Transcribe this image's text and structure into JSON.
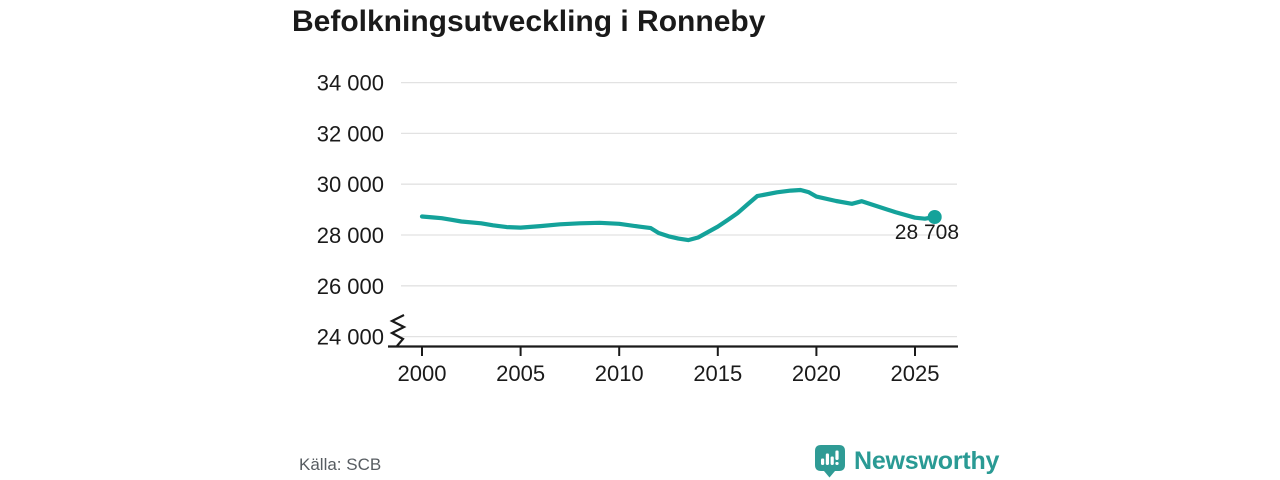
{
  "title": "Befolkningsutveckling i Ronneby",
  "source": "Källa: SCB",
  "logo": {
    "text": "Newsworthy",
    "icon": "newsworthy-speech-bubble-bar-chart-icon"
  },
  "colors": {
    "line": "#14a29a",
    "logo_teal": "#2f9b95",
    "logo_text": "#2a9a94",
    "grid": "#e2e2e2",
    "axis": "#1a1a1a",
    "text": "#1a1a1a",
    "source_text": "#575c61",
    "background": "#ffffff"
  },
  "chart_data": {
    "type": "line",
    "title": "Befolkningsutveckling i Ronneby",
    "xlabel": "",
    "ylabel": "",
    "x_unit": "year",
    "xlim": [
      1999.0,
      2027.2
    ],
    "ylim_drawn": [
      24000,
      34000
    ],
    "y_axis_break": true,
    "grid": "horizontal-only",
    "legend": "none",
    "x_ticks": [
      2000,
      2005,
      2010,
      2015,
      2020,
      2025
    ],
    "x_tick_labels": [
      "2000",
      "2005",
      "2010",
      "2015",
      "2020",
      "2025"
    ],
    "y_ticks": [
      24000,
      26000,
      28000,
      30000,
      32000,
      34000
    ],
    "y_tick_labels": [
      "24 000",
      "26 000",
      "28 000",
      "30 000",
      "32 000",
      "34 000"
    ],
    "end_value": 28708,
    "end_label": "28 708",
    "end_point": {
      "x": 2026.0,
      "value": 28708
    },
    "points": [
      [
        2000.0,
        28730
      ],
      [
        2000.6,
        28690
      ],
      [
        2001.0,
        28660
      ],
      [
        2001.5,
        28600
      ],
      [
        2002.0,
        28530
      ],
      [
        2003.0,
        28460
      ],
      [
        2003.6,
        28380
      ],
      [
        2004.3,
        28310
      ],
      [
        2005.0,
        28290
      ],
      [
        2006.0,
        28350
      ],
      [
        2007.0,
        28420
      ],
      [
        2008.0,
        28460
      ],
      [
        2009.0,
        28480
      ],
      [
        2010.0,
        28440
      ],
      [
        2011.0,
        28330
      ],
      [
        2011.6,
        28270
      ],
      [
        2012.0,
        28080
      ],
      [
        2012.5,
        27950
      ],
      [
        2013.0,
        27860
      ],
      [
        2013.5,
        27800
      ],
      [
        2014.0,
        27900
      ],
      [
        2015.0,
        28330
      ],
      [
        2015.5,
        28590
      ],
      [
        2016.0,
        28860
      ],
      [
        2016.5,
        29200
      ],
      [
        2017.0,
        29530
      ],
      [
        2018.0,
        29680
      ],
      [
        2018.7,
        29750
      ],
      [
        2019.2,
        29770
      ],
      [
        2019.6,
        29690
      ],
      [
        2020.0,
        29510
      ],
      [
        2021.0,
        29340
      ],
      [
        2021.8,
        29230
      ],
      [
        2022.3,
        29330
      ],
      [
        2023.0,
        29150
      ],
      [
        2024.0,
        28900
      ],
      [
        2025.0,
        28680
      ],
      [
        2025.5,
        28640
      ],
      [
        2026.0,
        28708
      ]
    ]
  }
}
